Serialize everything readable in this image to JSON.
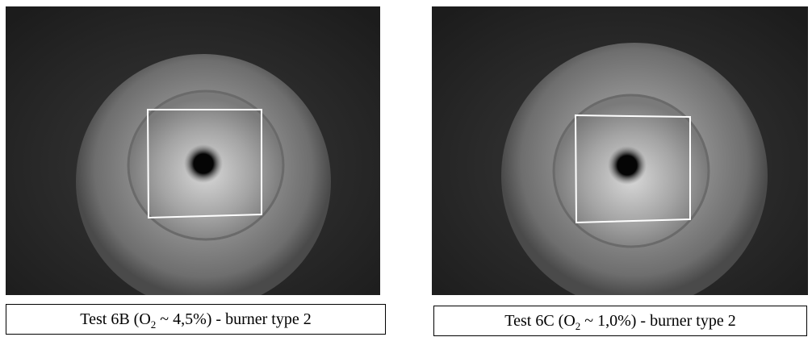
{
  "panels": [
    {
      "caption": {
        "before": "Test 6B (O",
        "subscript": "2",
        "after": " ~ 4,5%) - burner type 2"
      }
    },
    {
      "caption": {
        "before": "Test 6C (O",
        "subscript": "2",
        "after": " ~ 1,0%) - burner type 2"
      }
    }
  ]
}
